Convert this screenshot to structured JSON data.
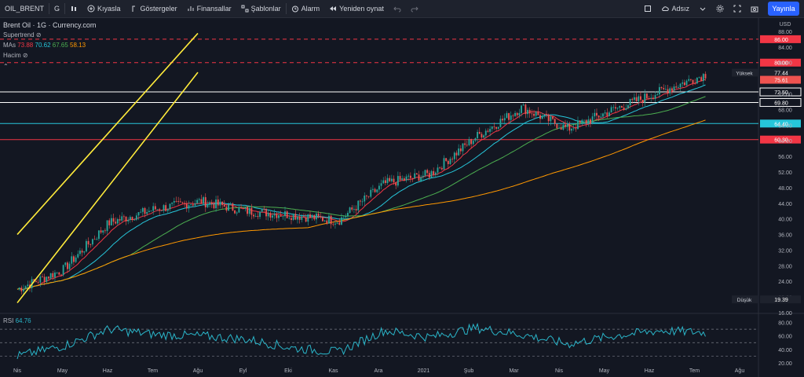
{
  "toolbar": {
    "symbol": "OIL_BRENT",
    "interval": "G",
    "compare": "Kıyasla",
    "indicators": "Göstergeler",
    "financials": "Finansallar",
    "templates": "Şablonlar",
    "alert": "Alarm",
    "replay": "Yeniden oynat",
    "layout_name": "Adsız",
    "publish": "Yayınla"
  },
  "legend": {
    "title": "Brent Oil · 1G · Currency.com",
    "supertrend": "Supertrend",
    "ma_label": "MAs",
    "ma_values": [
      "73.88",
      "70.62",
      "67.65",
      "58.13"
    ],
    "volume": "Hacim",
    "rsi_label": "RSI",
    "rsi_value": "64.76"
  },
  "colors": {
    "ma1": "#f23645",
    "ma2": "#26c6da",
    "ma3": "#4caf50",
    "ma4": "#ff9800",
    "channel": "#ffeb3b",
    "rsi": "#2ab5c9",
    "up": "#26a69a",
    "down": "#ef5350"
  },
  "chart_data": [
    {
      "type": "candlestick",
      "title": "Brent Oil · 1G · Currency.com",
      "currency": "USD",
      "ylim": [
        16,
        90
      ],
      "y_ticks": [
        "16.00",
        "20.00",
        "24.00",
        "28.00",
        "32.00",
        "36.00",
        "40.00",
        "44.00",
        "48.00",
        "52.00",
        "56.00",
        "60.00",
        "64.00",
        "68.00",
        "72.00",
        "76.00",
        "80.00",
        "84.00",
        "88.00"
      ],
      "x_ticks": [
        "Nis",
        "May",
        "Haz",
        "Tem",
        "Ağu",
        "Eyl",
        "Eki",
        "Kas",
        "Ara",
        "2021",
        "Şub",
        "Mar",
        "Nis",
        "May",
        "Haz",
        "Tem",
        "Ağu"
      ],
      "price_waypoints": {
        "x": [
          "Nis",
          "May",
          "Haz",
          "Tem",
          "Ağu",
          "Eyl",
          "Eki",
          "Kas",
          "Ara",
          "2021",
          "Şub",
          "Mar",
          "Nis",
          "May",
          "Haz",
          "Tem"
        ],
        "close": [
          22,
          27,
          39,
          42.5,
          44.5,
          42,
          41,
          39.5,
          49,
          51.5,
          61,
          68.5,
          63,
          68,
          72.5,
          77
        ]
      },
      "moving_averages": [
        {
          "name": "MA1",
          "value": "73.88",
          "color": "#f23645"
        },
        {
          "name": "MA2",
          "value": "70.62",
          "color": "#26c6da"
        },
        {
          "name": "MA3",
          "value": "67.65",
          "color": "#4caf50"
        },
        {
          "name": "MA4",
          "value": "58.13",
          "color": "#ff9800"
        }
      ],
      "horizontal_levels": [
        {
          "value": 86.0,
          "label": "86.00",
          "color": "#f23645",
          "style": "dashed"
        },
        {
          "value": 80.0,
          "label": "80.00",
          "color": "#f23645",
          "style": "dashed"
        },
        {
          "value": 72.5,
          "label": "72.50",
          "color": "#ffffff",
          "style": "solid"
        },
        {
          "value": 69.8,
          "label": "69.80",
          "color": "#ffffff",
          "style": "solid"
        },
        {
          "value": 64.4,
          "label": "64.40",
          "color": "#26c6da",
          "style": "solid"
        },
        {
          "value": 60.3,
          "label": "60.30",
          "color": "#f23645",
          "style": "solid"
        }
      ],
      "price_labels": [
        {
          "text": "Yüksek",
          "value": "77.44"
        },
        {
          "text": "",
          "value": "75.61"
        },
        {
          "text": "Düşük",
          "value": "19.39"
        }
      ],
      "channel_lines": [
        {
          "x": [
            "Nis",
            "Ağu"
          ],
          "y": [
            36,
            87.5
          ]
        },
        {
          "x": [
            "Nis",
            "Ağu"
          ],
          "y": [
            18.5,
            77.5
          ]
        }
      ]
    },
    {
      "type": "line",
      "name": "RSI",
      "value": "64.76",
      "ylim": [
        20,
        90
      ],
      "y_ticks": [
        "20.00",
        "40.00",
        "60.00",
        "80.00"
      ],
      "levels": [
        70,
        50,
        30
      ],
      "waypoints": {
        "x": [
          "Nis",
          "May",
          "Haz",
          "Tem",
          "Ağu",
          "Eyl",
          "Eki",
          "Kas",
          "Ara",
          "2021",
          "Şub",
          "Mar",
          "Nis",
          "May",
          "Haz",
          "Tem"
        ],
        "y": [
          30,
          45,
          70,
          62,
          60,
          55,
          42,
          36,
          68,
          58,
          72,
          62,
          48,
          60,
          68,
          65
        ]
      }
    }
  ]
}
